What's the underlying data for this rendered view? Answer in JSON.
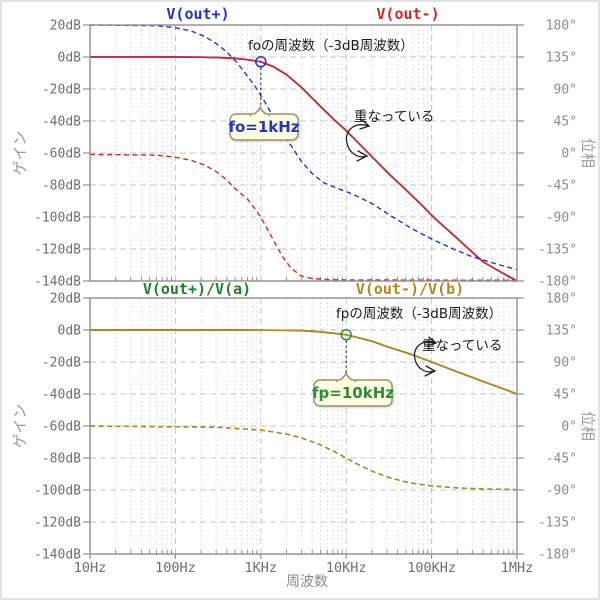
{
  "colors": {
    "blue": "#2233cc",
    "red": "#cc2a2a",
    "green": "#1f7d2f",
    "olive": "#b08820",
    "grid_major": "#c5c5c5",
    "grid_minor": "#d4d4d4",
    "axis": "#8f8f8f",
    "marker_line": "#222222",
    "callout_bg": "#ffffe2",
    "callout_border": "#9a9176"
  },
  "axes": {
    "x_label": "周波数",
    "x_ticks": [
      "10Hz",
      "100Hz",
      "1KHz",
      "10KHz",
      "100KHz",
      "1MHz"
    ],
    "y_left_label": "ゲイン",
    "y_left_ticks": [
      "20dB",
      "0dB",
      "-20dB",
      "-40dB",
      "-60dB",
      "-80dB",
      "-100dB",
      "-120dB",
      "-140dB"
    ],
    "y_right_label": "位相",
    "y_right_ticks": [
      "180°",
      "135°",
      "90°",
      "45°",
      "0°",
      "-45°",
      "-90°",
      "-135°",
      "-180°"
    ]
  },
  "chart_data": [
    {
      "type": "line",
      "x_scale": "log",
      "x_range_hz": [
        10,
        1000000
      ],
      "y_left": {
        "label": "ゲイン",
        "unit": "dB",
        "range": [
          -140,
          20
        ],
        "step": 20
      },
      "y_right": {
        "label": "位相",
        "unit": "deg",
        "range": [
          -180,
          180
        ],
        "step": 45
      },
      "titles": [
        {
          "text": "V(out+)",
          "color": "#2233cc"
        },
        {
          "text": "V(out-)",
          "color": "#cc2a2a"
        }
      ],
      "note": "重なっている",
      "marker": {
        "label": "foの周波数（-3dB周波数）",
        "callout": "fo=1kHz",
        "f_hz": 1000,
        "value_db": -3,
        "color": "#2233cc"
      },
      "series": [
        {
          "name": "V(out+) gain",
          "axis": "left",
          "line": "solid",
          "color": "#2233cc",
          "points": [
            [
              10,
              0
            ],
            [
              100,
              0
            ],
            [
              200,
              -0.1
            ],
            [
              300,
              -0.3
            ],
            [
              500,
              -0.9
            ],
            [
              700,
              -1.7
            ],
            [
              1000,
              -3
            ],
            [
              1400,
              -6
            ],
            [
              2000,
              -11
            ],
            [
              3000,
              -19
            ],
            [
              4500,
              -28.5
            ],
            [
              7000,
              -38.5
            ],
            [
              10000,
              -46
            ],
            [
              15000,
              -55.5
            ],
            [
              22000,
              -64.5
            ],
            [
              33000,
              -74
            ],
            [
              50000,
              -83
            ],
            [
              75000,
              -92
            ],
            [
              110000,
              -101
            ],
            [
              170000,
              -110
            ],
            [
              260000,
              -119
            ],
            [
              400000,
              -128
            ],
            [
              650000,
              -134.5
            ],
            [
              1000000,
              -140
            ]
          ]
        },
        {
          "name": "V(out-) gain",
          "axis": "left",
          "line": "solid",
          "color": "#cc2a2a",
          "points": [
            [
              10,
              0
            ],
            [
              100,
              0
            ],
            [
              200,
              -0.1
            ],
            [
              300,
              -0.3
            ],
            [
              500,
              -0.9
            ],
            [
              700,
              -1.7
            ],
            [
              1000,
              -3
            ],
            [
              1400,
              -6
            ],
            [
              2000,
              -11
            ],
            [
              3000,
              -19
            ],
            [
              4500,
              -28.5
            ],
            [
              7000,
              -38.5
            ],
            [
              10000,
              -46
            ],
            [
              15000,
              -55.5
            ],
            [
              22000,
              -64.5
            ],
            [
              33000,
              -74
            ],
            [
              50000,
              -83
            ],
            [
              75000,
              -92
            ],
            [
              110000,
              -101
            ],
            [
              170000,
              -110
            ],
            [
              260000,
              -119
            ],
            [
              400000,
              -128
            ],
            [
              650000,
              -134.5
            ],
            [
              1000000,
              -140
            ]
          ]
        },
        {
          "name": "V(out+) phase",
          "axis": "right",
          "line": "dashed",
          "color": "#2233cc",
          "points": [
            [
              10,
              180
            ],
            [
              60,
              179
            ],
            [
              100,
              176
            ],
            [
              150,
              172
            ],
            [
              220,
              164
            ],
            [
              300,
              154
            ],
            [
              400,
              142
            ],
            [
              520,
              128
            ],
            [
              700,
              108
            ],
            [
              900,
              90
            ],
            [
              1100,
              73
            ],
            [
              1400,
              51
            ],
            [
              1800,
              29
            ],
            [
              2300,
              9
            ],
            [
              3000,
              -12
            ],
            [
              4000,
              -29
            ],
            [
              5500,
              -42
            ],
            [
              8000,
              -50
            ],
            [
              12000,
              -58
            ],
            [
              20000,
              -71
            ],
            [
              35000,
              -90
            ],
            [
              60000,
              -107
            ],
            [
              100000,
              -121
            ],
            [
              180000,
              -135
            ],
            [
              300000,
              -146
            ],
            [
              500000,
              -154
            ],
            [
              750000,
              -160
            ],
            [
              1000000,
              -164
            ]
          ]
        },
        {
          "name": "V(out-) phase",
          "axis": "right",
          "line": "dashed",
          "color": "#cc2a2a",
          "points": [
            [
              10,
              -2
            ],
            [
              60,
              -3
            ],
            [
              100,
              -6
            ],
            [
              150,
              -10
            ],
            [
              220,
              -17
            ],
            [
              300,
              -26
            ],
            [
              400,
              -38
            ],
            [
              520,
              -52
            ],
            [
              700,
              -65
            ],
            [
              900,
              -82
            ],
            [
              1100,
              -99
            ],
            [
              1400,
              -122
            ],
            [
              1800,
              -146
            ],
            [
              2300,
              -163
            ],
            [
              3000,
              -173
            ],
            [
              4000,
              -176.5
            ],
            [
              6000,
              -178
            ],
            [
              10000,
              -178.5
            ],
            [
              1000000,
              -179
            ]
          ]
        }
      ]
    },
    {
      "type": "line",
      "x_scale": "log",
      "x_range_hz": [
        10,
        1000000
      ],
      "y_left": {
        "label": "ゲイン",
        "unit": "dB",
        "range": [
          -140,
          20
        ],
        "step": 20
      },
      "y_right": {
        "label": "位相",
        "unit": "deg",
        "range": [
          -180,
          180
        ],
        "step": 45
      },
      "titles": [
        {
          "text": "V(out+)/V(a)",
          "color": "#1f7d2f"
        },
        {
          "text": "V(out-)/V(b)",
          "color": "#b08820"
        }
      ],
      "note": "重なっている",
      "marker": {
        "label": "fpの周波数（-3dB周波数）",
        "callout": "fp=10kHz",
        "f_hz": 10000,
        "value_db": -3,
        "color": "#2e8b3a"
      },
      "series": [
        {
          "name": "V(out+)/V(a) gain",
          "axis": "left",
          "line": "solid",
          "color": "#1f7d2f",
          "points": [
            [
              10,
              0
            ],
            [
              500,
              0
            ],
            [
              1000,
              -0.1
            ],
            [
              2000,
              -0.2
            ],
            [
              3000,
              -0.4
            ],
            [
              5000,
              -1.2
            ],
            [
              7000,
              -2
            ],
            [
              10000,
              -3
            ],
            [
              14000,
              -4.9
            ],
            [
              20000,
              -7
            ],
            [
              30000,
              -10.4
            ],
            [
              50000,
              -14.1
            ],
            [
              70000,
              -16.9
            ],
            [
              100000,
              -20
            ],
            [
              200000,
              -26.1
            ],
            [
              400000,
              -32.1
            ],
            [
              700000,
              -36.9
            ],
            [
              1000000,
              -40
            ]
          ]
        },
        {
          "name": "V(out-)/V(b) gain",
          "axis": "left",
          "line": "solid",
          "color": "#b08820",
          "points": [
            [
              10,
              0
            ],
            [
              500,
              0
            ],
            [
              1000,
              -0.1
            ],
            [
              2000,
              -0.2
            ],
            [
              3000,
              -0.4
            ],
            [
              5000,
              -1.2
            ],
            [
              7000,
              -2
            ],
            [
              10000,
              -3
            ],
            [
              14000,
              -4.9
            ],
            [
              20000,
              -7
            ],
            [
              30000,
              -10.4
            ],
            [
              50000,
              -14.1
            ],
            [
              70000,
              -16.9
            ],
            [
              100000,
              -20
            ],
            [
              200000,
              -26.1
            ],
            [
              400000,
              -32.1
            ],
            [
              700000,
              -36.9
            ],
            [
              1000000,
              -40
            ]
          ]
        },
        {
          "name": "V(out+)/V(a) phase",
          "axis": "right",
          "line": "dashed",
          "color": "#1f7d2f",
          "points": [
            [
              10,
              0
            ],
            [
              300,
              -1.7
            ],
            [
              1000,
              -5.7
            ],
            [
              2000,
              -11.3
            ],
            [
              3000,
              -16.7
            ],
            [
              5000,
              -26.6
            ],
            [
              7000,
              -35
            ],
            [
              10000,
              -45
            ],
            [
              14000,
              -54.5
            ],
            [
              20000,
              -63.4
            ],
            [
              30000,
              -71.6
            ],
            [
              50000,
              -78.7
            ],
            [
              70000,
              -81.9
            ],
            [
              100000,
              -84.3
            ],
            [
              200000,
              -87.1
            ],
            [
              400000,
              -88.6
            ],
            [
              1000000,
              -89.4
            ]
          ]
        },
        {
          "name": "V(out-)/V(b) phase",
          "axis": "right",
          "line": "dashed",
          "color": "#b08820",
          "points": [
            [
              10,
              0
            ],
            [
              300,
              -1.7
            ],
            [
              1000,
              -5.7
            ],
            [
              2000,
              -11.3
            ],
            [
              3000,
              -16.7
            ],
            [
              5000,
              -26.6
            ],
            [
              7000,
              -35
            ],
            [
              10000,
              -45
            ],
            [
              14000,
              -54.5
            ],
            [
              20000,
              -63.4
            ],
            [
              30000,
              -71.6
            ],
            [
              50000,
              -78.7
            ],
            [
              70000,
              -81.9
            ],
            [
              100000,
              -84.3
            ],
            [
              200000,
              -87.1
            ],
            [
              400000,
              -88.6
            ],
            [
              1000000,
              -89.4
            ]
          ]
        }
      ]
    }
  ]
}
